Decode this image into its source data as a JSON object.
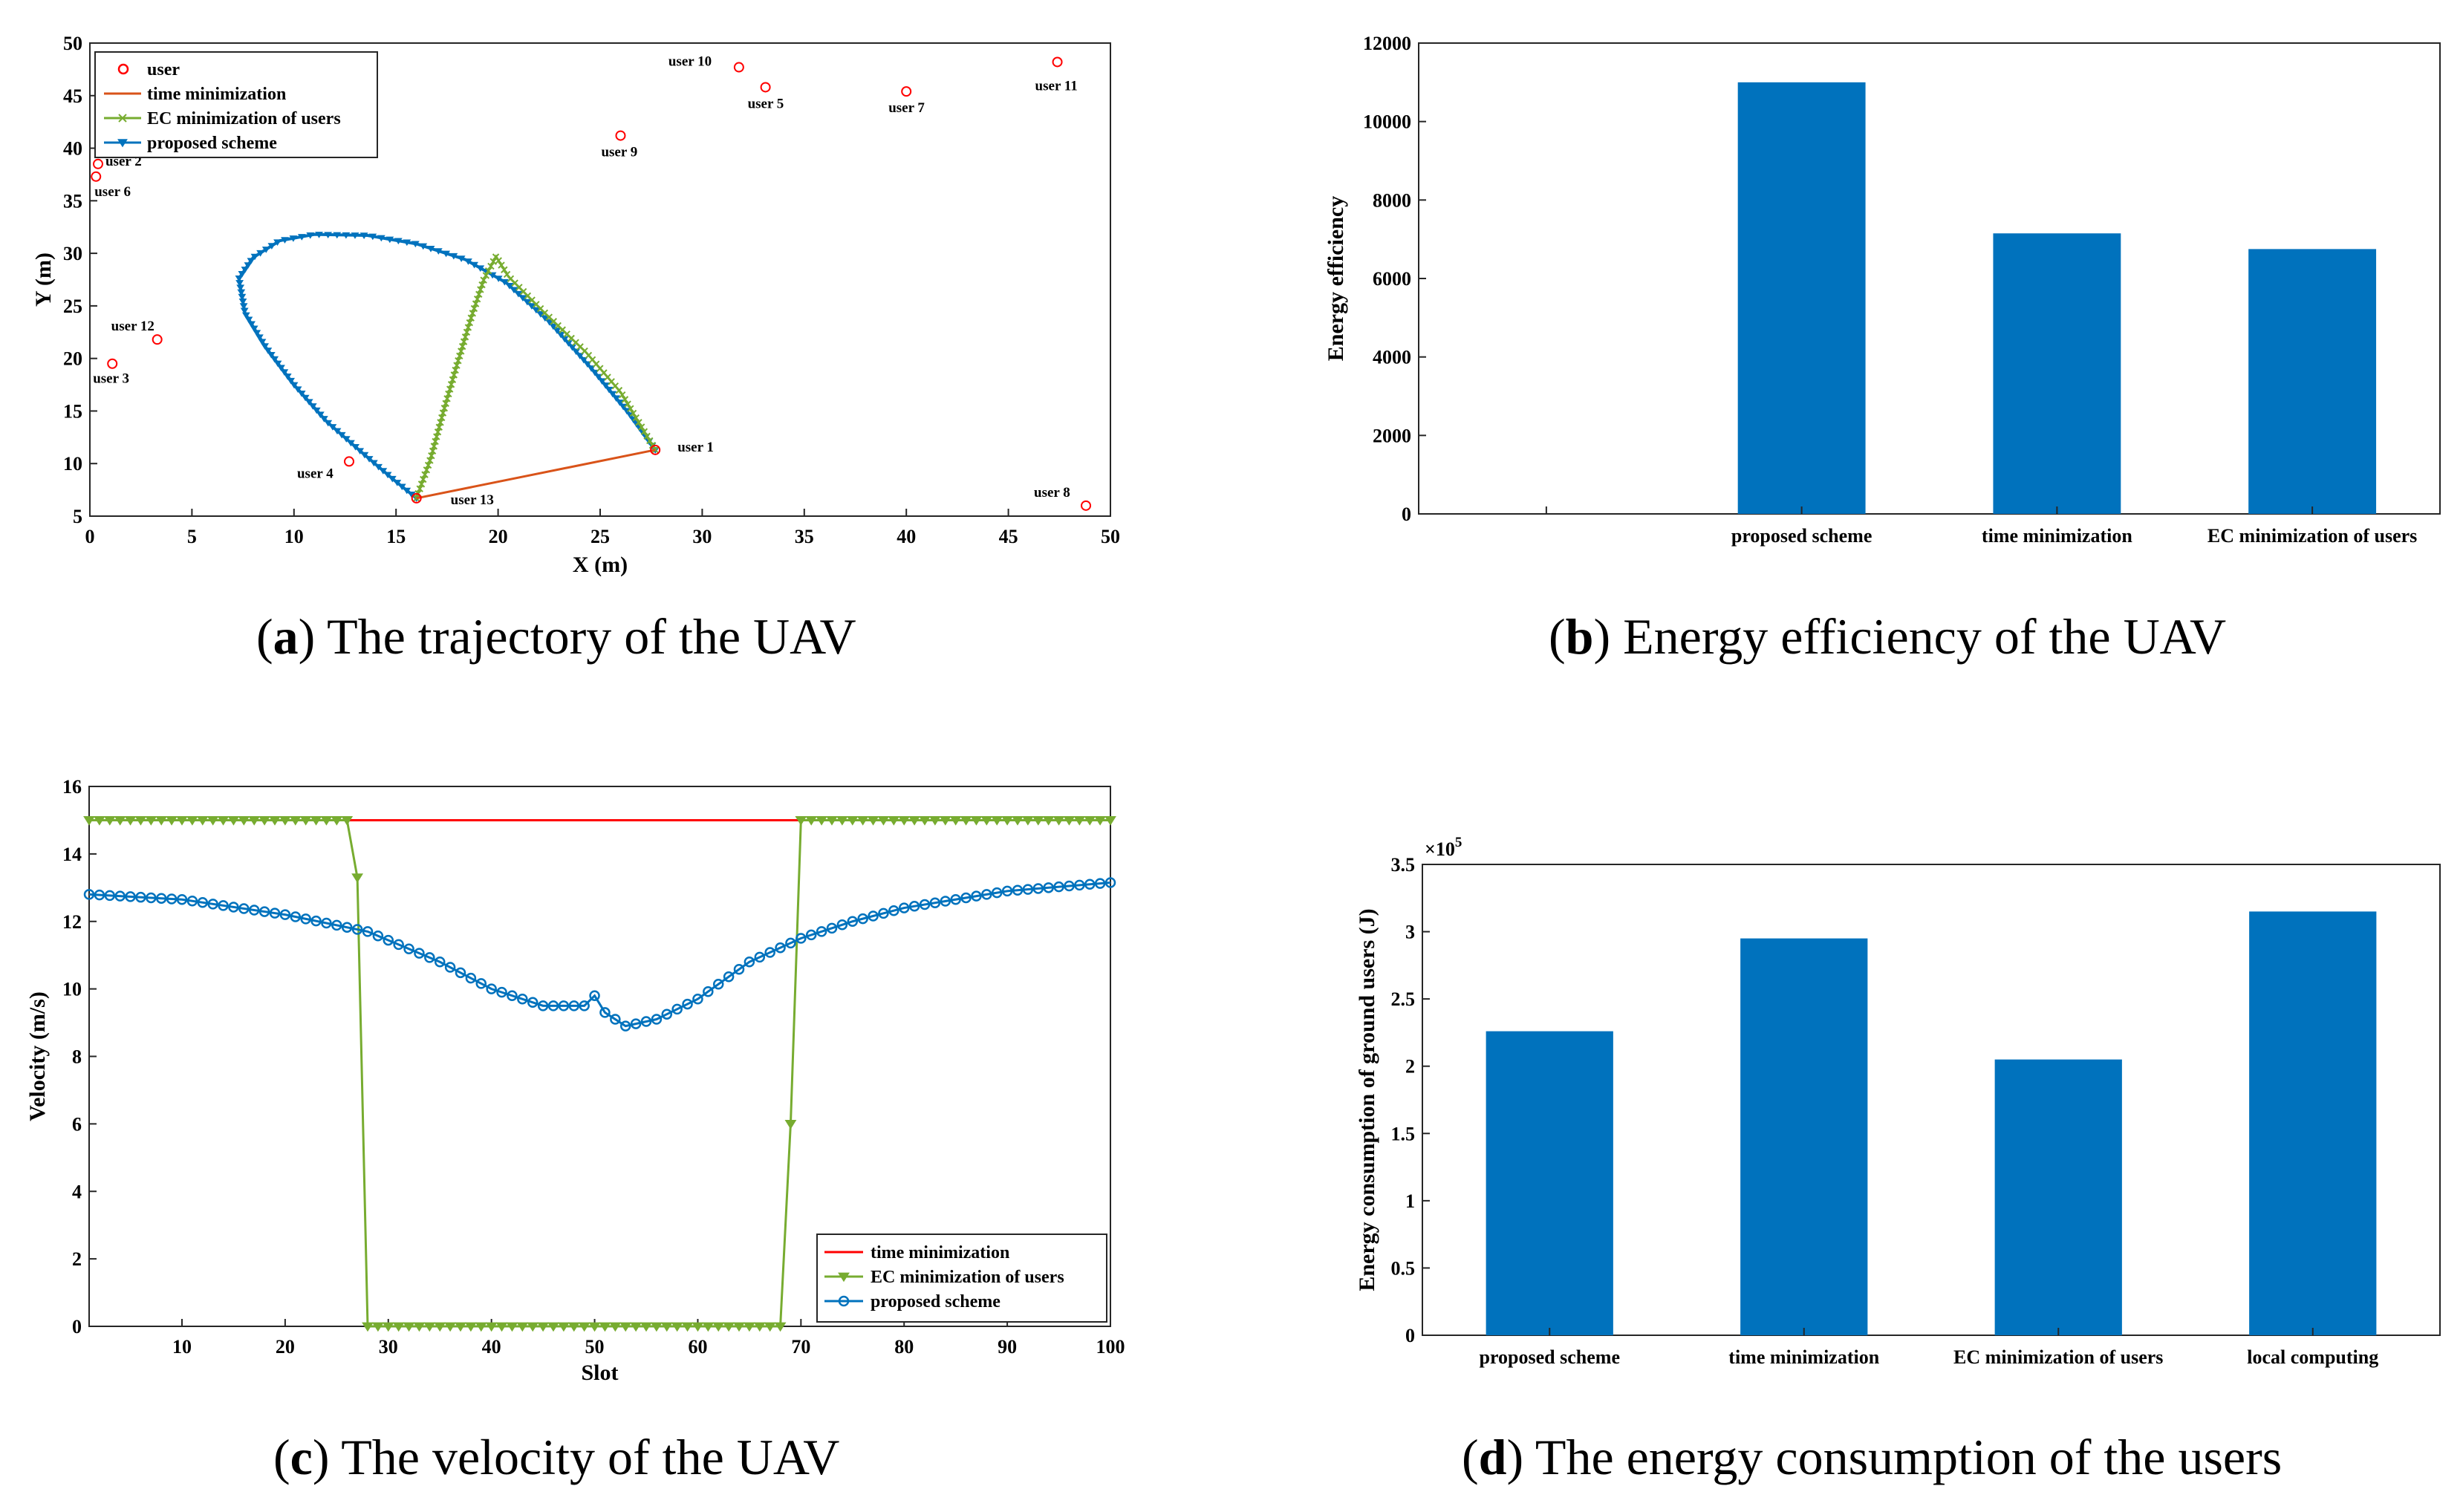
{
  "colors": {
    "bar": "#0072BD",
    "time_a": "#D95319",
    "time_c": "#FF0000",
    "ec": "#77AC30",
    "proposed": "#0072BD",
    "user": "#FF0000"
  },
  "chart_data": [
    {
      "id": "a",
      "type": "line",
      "caption_letter": "a",
      "caption_text": "The trajectory of the UAV",
      "xlabel": "X (m)",
      "ylabel": "Y (m)",
      "xlim": [
        0,
        50
      ],
      "ylim": [
        5,
        50
      ],
      "xticks": [
        0,
        5,
        10,
        15,
        20,
        25,
        30,
        35,
        40,
        45,
        50
      ],
      "yticks": [
        5,
        10,
        15,
        20,
        25,
        30,
        35,
        40,
        45,
        50
      ],
      "legend": [
        "user",
        "time minimization",
        "EC minimization of users",
        "proposed scheme"
      ],
      "users": [
        {
          "name": "user 1",
          "x": 27.7,
          "y": 11.3
        },
        {
          "name": "user 2",
          "x": 0.4,
          "y": 38.5
        },
        {
          "name": "user 3",
          "x": 1.1,
          "y": 19.5
        },
        {
          "name": "user 4",
          "x": 12.7,
          "y": 10.2
        },
        {
          "name": "user 5",
          "x": 33.1,
          "y": 45.8
        },
        {
          "name": "user 6",
          "x": 0.3,
          "y": 37.3
        },
        {
          "name": "user 7",
          "x": 40.0,
          "y": 45.4
        },
        {
          "name": "user 8",
          "x": 48.8,
          "y": 6.0
        },
        {
          "name": "user 9",
          "x": 26.0,
          "y": 41.2
        },
        {
          "name": "user 10",
          "x": 31.8,
          "y": 47.7
        },
        {
          "name": "user 11",
          "x": 47.4,
          "y": 48.2
        },
        {
          "name": "user 12",
          "x": 3.3,
          "y": 21.8
        },
        {
          "name": "user 13",
          "x": 16.0,
          "y": 6.7
        }
      ],
      "series": [
        {
          "name": "time minimization",
          "points": [
            [
              16.0,
              6.7
            ],
            [
              27.7,
              11.3
            ]
          ]
        },
        {
          "name": "EC minimization of users",
          "points": [
            [
              16.0,
              6.7
            ],
            [
              16.7,
              10.5
            ],
            [
              17.3,
              14.8
            ],
            [
              18.0,
              19.5
            ],
            [
              18.7,
              24.0
            ],
            [
              19.3,
              27.5
            ],
            [
              19.9,
              29.7
            ],
            [
              20.5,
              27.8
            ],
            [
              22.3,
              24.3
            ],
            [
              24.3,
              20.6
            ],
            [
              26.0,
              16.8
            ],
            [
              27.7,
              11.3
            ]
          ]
        },
        {
          "name": "proposed scheme",
          "points": [
            [
              27.7,
              11.3
            ],
            [
              26.4,
              14.8
            ],
            [
              24.6,
              19.0
            ],
            [
              22.5,
              23.5
            ],
            [
              20.4,
              27.2
            ],
            [
              18.4,
              29.4
            ],
            [
              16.0,
              30.9
            ],
            [
              13.6,
              31.7
            ],
            [
              11.0,
              31.8
            ],
            [
              9.3,
              31.2
            ],
            [
              8.0,
              29.6
            ],
            [
              7.3,
              27.6
            ],
            [
              7.6,
              24.3
            ],
            [
              8.6,
              21.1
            ],
            [
              10.0,
              17.5
            ],
            [
              11.6,
              14.0
            ],
            [
              13.3,
              11.1
            ],
            [
              14.8,
              8.6
            ],
            [
              16.0,
              6.7
            ]
          ]
        }
      ]
    },
    {
      "id": "b",
      "type": "bar",
      "caption_letter": "b",
      "caption_text": "Energy efficiency of the UAV",
      "ylabel": "Energy efficiency",
      "ylim": [
        0,
        12000
      ],
      "yticks": [
        0,
        2000,
        4000,
        6000,
        8000,
        10000,
        12000
      ],
      "categories": [
        "",
        "proposed scheme",
        "time minimization",
        "EC minimization of users"
      ],
      "values": [
        null,
        11000,
        7150,
        6750
      ]
    },
    {
      "id": "c",
      "type": "line",
      "caption_letter": "c",
      "caption_text": "The velocity of the UAV",
      "xlabel": "Slot",
      "ylabel": "Velocity (m/s)",
      "xlim": [
        1,
        100
      ],
      "ylim": [
        0,
        16
      ],
      "xticks": [
        10,
        20,
        30,
        40,
        50,
        60,
        70,
        80,
        90,
        100
      ],
      "yticks": [
        0,
        2,
        4,
        6,
        8,
        10,
        12,
        14,
        16
      ],
      "legend": [
        "time minimization",
        "EC minimization of users",
        "proposed scheme"
      ],
      "series": [
        {
          "name": "time minimization",
          "points": [
            [
              1,
              15
            ],
            [
              100,
              15
            ]
          ]
        },
        {
          "name": "EC minimization of users",
          "points": [
            [
              1,
              15
            ],
            [
              26,
              15
            ],
            [
              27,
              13.3
            ],
            [
              28,
              0
            ],
            [
              68,
              0
            ],
            [
              69,
              6
            ],
            [
              70,
              15
            ],
            [
              100,
              15
            ]
          ]
        },
        {
          "name": "proposed scheme",
          "points": [
            [
              1,
              12.8
            ],
            [
              10,
              12.65
            ],
            [
              20,
              12.2
            ],
            [
              28,
              11.7
            ],
            [
              35,
              10.8
            ],
            [
              40,
              10.0
            ],
            [
              45,
              9.5
            ],
            [
              49,
              9.5
            ],
            [
              50,
              9.8
            ],
            [
              51,
              9.3
            ],
            [
              53,
              8.9
            ],
            [
              56,
              9.1
            ],
            [
              60,
              9.7
            ],
            [
              65,
              10.8
            ],
            [
              70,
              11.5
            ],
            [
              75,
              12.0
            ],
            [
              80,
              12.4
            ],
            [
              90,
              12.9
            ],
            [
              100,
              13.15
            ]
          ]
        }
      ]
    },
    {
      "id": "d",
      "type": "bar",
      "caption_letter": "d",
      "caption_text": "The energy consumption of the users",
      "ylabel": "Energy consumption of ground users (J)",
      "scale_label": "×10",
      "scale_exp": "5",
      "ylim": [
        0,
        3.5
      ],
      "yticks": [
        0,
        0.5,
        1,
        1.5,
        2,
        2.5,
        3,
        3.5
      ],
      "categories": [
        "proposed scheme",
        "time minimization",
        "EC minimization of users",
        "local computing"
      ],
      "values": [
        2.26,
        2.95,
        2.05,
        3.15
      ]
    }
  ]
}
